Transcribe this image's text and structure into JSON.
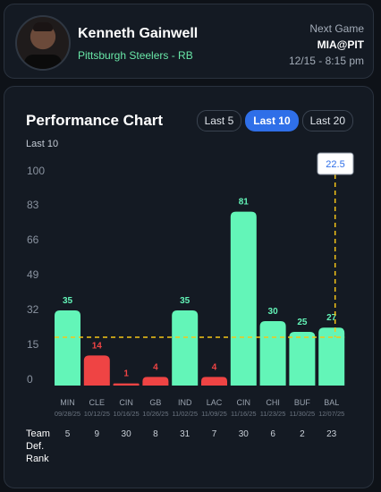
{
  "player": {
    "name": "Kenneth Gainwell",
    "team_position": "Pittsburgh Steelers - RB"
  },
  "next_game": {
    "label": "Next Game",
    "matchup": "MIA@PIT",
    "datetime": "12/15 - 8:15 pm"
  },
  "chart": {
    "title": "Performance Chart",
    "subtitle": "Last 10",
    "tabs": [
      {
        "label": "Last 5",
        "active": false
      },
      {
        "label": "Last 10",
        "active": true
      },
      {
        "label": "Last 20",
        "active": false
      }
    ],
    "rank_label_lines": [
      "Team",
      "Def.",
      "Rank"
    ]
  },
  "colors": {
    "over": "#63f5b8",
    "under": "#ef4444",
    "line": "#f5c518",
    "accent": "#2f6fe8"
  },
  "chart_data": {
    "type": "bar",
    "y_ticks": [
      0,
      15,
      32,
      49,
      66,
      83,
      100
    ],
    "ylim": [
      0,
      100
    ],
    "threshold": 22.5,
    "threshold_label": "22.5",
    "categories": [
      "MIN",
      "CLE",
      "CIN",
      "GB",
      "IND",
      "LAC",
      "CIN",
      "CHI",
      "BUF",
      "BAL"
    ],
    "dates": [
      "09/28/25",
      "10/12/25",
      "10/16/25",
      "10/26/25",
      "11/02/25",
      "11/09/25",
      "11/16/25",
      "11/23/25",
      "11/30/25",
      "12/07/25"
    ],
    "values": [
      35,
      14,
      1,
      4,
      35,
      4,
      81,
      30,
      25,
      27
    ],
    "def_rank": [
      5,
      9,
      30,
      8,
      31,
      7,
      30,
      6,
      2,
      23
    ]
  }
}
